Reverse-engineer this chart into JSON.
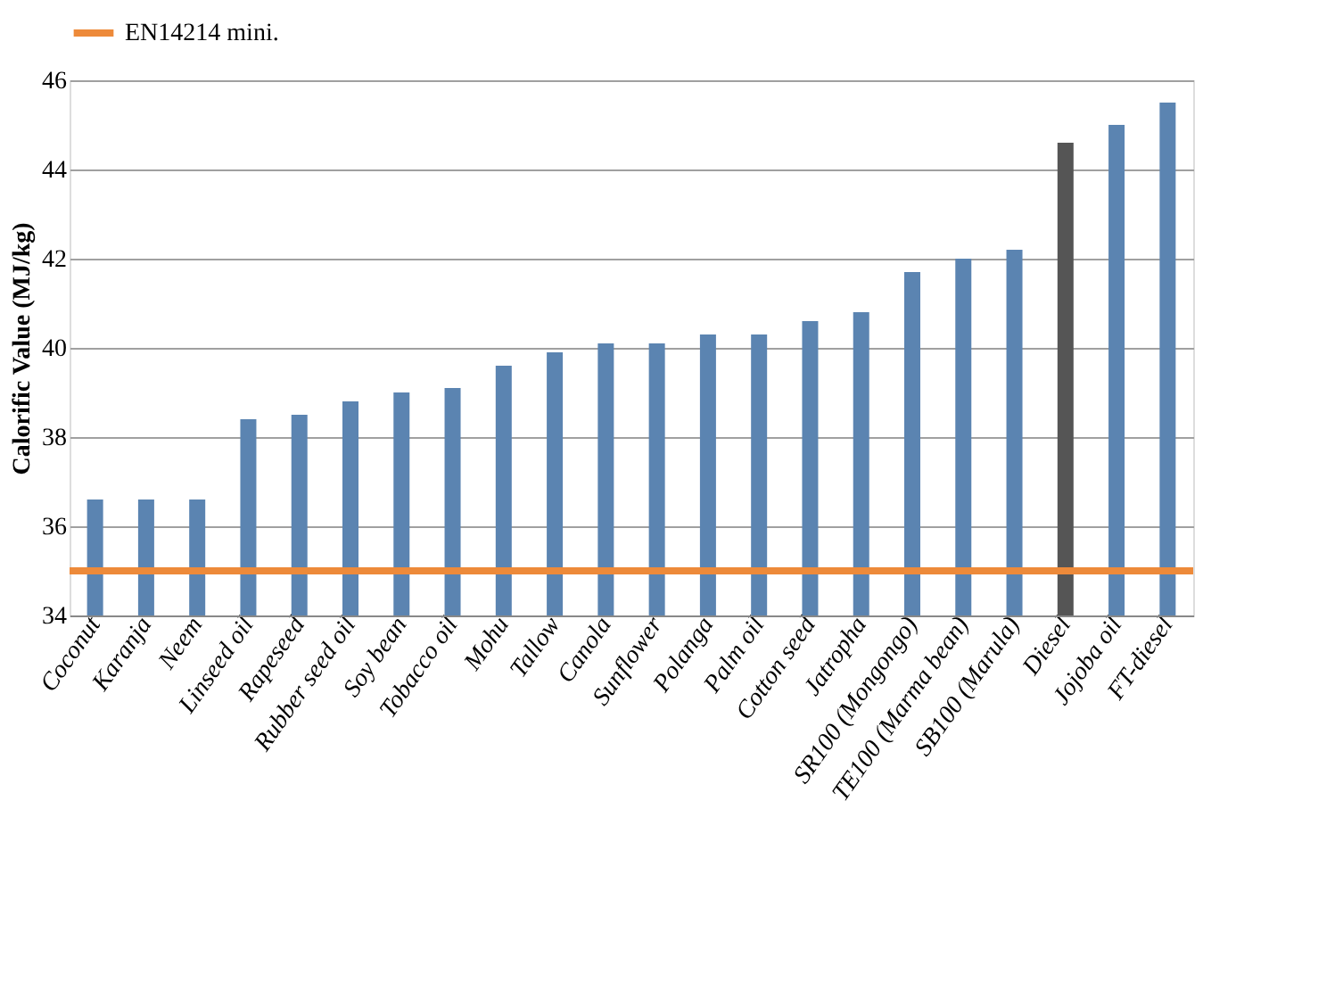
{
  "chart_data": {
    "type": "bar",
    "ylabel": "Calorific Value (MJ/kg)",
    "categories": [
      "Coconut",
      "Karanja",
      "Neem",
      "Linseed oil",
      "Rapeseed",
      "Rubber seed oil",
      "Soy bean",
      "Tobacco oil",
      "Mohu",
      "Tallow",
      "Canola",
      "Sunflower",
      "Polanga",
      "Palm oil",
      "Cotton seed",
      "Jatropha",
      "SR100 (Mongongo)",
      "TE100 (Marma bean)",
      "SB100 (Marula)",
      "Diesel",
      "Jojoba oil",
      "FT-diesel"
    ],
    "values": [
      36.6,
      36.6,
      36.6,
      38.4,
      38.5,
      38.8,
      39.0,
      39.1,
      39.6,
      39.9,
      40.1,
      40.1,
      40.3,
      40.3,
      40.6,
      40.8,
      41.7,
      42.0,
      42.2,
      44.6,
      45.0,
      45.5
    ],
    "colors": [
      "#5b84b1",
      "#5b84b1",
      "#5b84b1",
      "#5b84b1",
      "#5b84b1",
      "#5b84b1",
      "#5b84b1",
      "#5b84b1",
      "#5b84b1",
      "#5b84b1",
      "#5b84b1",
      "#5b84b1",
      "#5b84b1",
      "#5b84b1",
      "#5b84b1",
      "#5b84b1",
      "#5b84b1",
      "#5b84b1",
      "#5b84b1",
      "#555555",
      "#5b84b1",
      "#5b84b1"
    ],
    "ylim": [
      34,
      46
    ],
    "yticks": [
      34,
      36,
      38,
      40,
      42,
      44,
      46
    ],
    "grid": "y",
    "legend": "top",
    "ref_lines": [
      {
        "axis": "y",
        "value": 35,
        "label": "EN14214 mini.",
        "color": "#ed8a3a"
      }
    ]
  }
}
